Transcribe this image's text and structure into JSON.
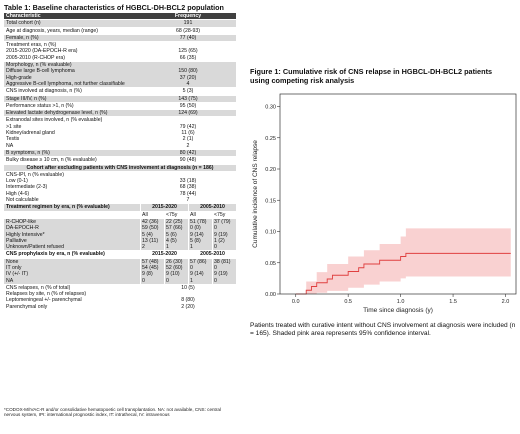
{
  "table": {
    "title": "Table 1: Baseline characteristics of HGBCL-DH-BCL2 population",
    "header": {
      "characteristic": "Characteristic",
      "frequency": "Frequency"
    },
    "rows": [
      {
        "label": "Total cohort (n)",
        "value": "191"
      },
      {
        "label": "Age at diagnosis, years, median (range)",
        "value": "68 (28-93)"
      },
      {
        "label": "Female, n (%)",
        "value": "77 (40)"
      },
      {
        "label": "Treatment eras, n (%)\n2015-2020 (DA-EPOCH-R era)\n2005-2010 (R-CHOP era)",
        "value": "\n125 (65)\n66 (35)"
      },
      {
        "label": "Morphology, n (% evaluable)\nDiffuse large B-cell lymphoma\nHigh-grade\nAggressive B-cell lymphoma, not further classifiable",
        "value": "\n150 (80)\n37 (20)\n4"
      },
      {
        "label": "CNS involved at diagnosis, n (%)",
        "value": "5 (3)"
      },
      {
        "label": "Stage III/IV, n (%)",
        "value": "143 (75)"
      },
      {
        "label": "Performance status >1, n (%)",
        "value": "95 (50)"
      },
      {
        "label": "Elevated lactate dehydrogenase level, n (%)",
        "value": "124 (69)"
      },
      {
        "label": "Extranodal sites involved, n (% evaluable)\n>1 site\nKidney/adrenal gland\nTestis\nNA",
        "value": "\n79 (42)\n11 (6)\n2 (1)\n2"
      },
      {
        "label": "B symptoms, n (%)",
        "value": "80 (42)"
      },
      {
        "label": "Bulky disease ≥ 10 cm, n (% evaluable)",
        "value": "90 (48)"
      }
    ],
    "cohort_section": {
      "title": "Cohort after excluding patients with CNS involvement at diagnosis (n = 186)",
      "label": "CNS-IPI, n (% evaluable)\nLow (0-1)\nIntermediate (2-3)\nHigh (4-6)\nNot calculable",
      "value": "\n33 (18)\n68 (38)\n78 (44)\n7"
    },
    "treatment_section": {
      "title": "Treatment regimen by era, n (% evaluable)",
      "era1": "2015-2020",
      "era2": "2005-2010",
      "subheads": [
        "All",
        "<75y",
        "All",
        "<75y"
      ],
      "label": "R-CHOP-like\nDA-EPOCH-R\nHighly Intensive*\nPalliative\nUnknown/Patient refused",
      "cols": [
        "42 (36)\n59 (50)\n5 (4)\n13 (11)\n2",
        "22 (25)\n57 (66)\n5 (6)\n4 (5)\n1",
        "51 (78)\n0 (0)\n9 (14)\n5 (8)\n1",
        "37 (79)\n0\n9 (19)\n1 (2)\n0"
      ]
    },
    "prophylaxis_section": {
      "title": "CNS prophylaxis by era, n (% evaluable)",
      "era1": "2015-2020",
      "era2": "2005-2010",
      "label": "None\nIT only\nIV (+/- IT)\nNA",
      "cols": [
        "57 (48)\n54 (45)\n9 (8)\n0",
        "26 (30)\n52 (60)\n9 (10)\n0",
        "57 (86)\n0\n9 (14)\n1",
        "38 (81)\n0\n9 (19)\n0"
      ]
    },
    "relapse": {
      "label": "CNS relapses, n (% of total)\nRelapses by site, n (% of relapses)\nLeptomeningeal +/- parenchymal\nParenchymal only",
      "value": "10 (5)\n\n8 (80)\n2 (20)"
    },
    "footnote": "*CODOX-M/IVAC-R and/or consolidative hematopoetic cell transplantation. NA: not available, CNS: central nervous system, IPI: international prognostic index, IT: intrathecal, IV: intravenous"
  },
  "figure": {
    "title": "Figure 1: Cumulative risk of CNS relapse in HGBCL-DH-BCL2 patients using competing risk analysis",
    "caption": "Patients treated with curative intent without CNS involvement at diagnosis were included (n = 165). Shaded pink area represents 95% confidence interval.",
    "line_color": "#e04040",
    "band_color": "#f7c5c5"
  },
  "chart_data": {
    "type": "line",
    "title": "",
    "xlabel": "Time since diagnosis (y)",
    "ylabel": "Cumulative incidence of CNS relapse",
    "xlim": [
      -0.15,
      2.1
    ],
    "ylim": [
      0,
      0.32
    ],
    "xticks": [
      0.0,
      0.5,
      1.0,
      1.5,
      2.0
    ],
    "yticks": [
      0.0,
      0.05,
      0.1,
      0.15,
      0.2,
      0.25,
      0.3
    ],
    "xtick_labels": [
      "0.0",
      "0.5",
      "1.0",
      "1.5",
      "2.0"
    ],
    "ytick_labels": [
      "0.00",
      "0.05",
      "0.10",
      "0.15",
      "0.20",
      "0.25",
      "0.30"
    ],
    "grid": false,
    "series": [
      {
        "estimate": {
          "x": [
            0.0,
            0.1,
            0.15,
            0.2,
            0.3,
            0.35,
            0.5,
            0.6,
            0.65,
            0.8,
            1.0,
            1.05,
            2.05
          ],
          "y": [
            0.0,
            0.006,
            0.012,
            0.018,
            0.024,
            0.03,
            0.036,
            0.042,
            0.048,
            0.054,
            0.06,
            0.065,
            0.065
          ]
        },
        "lower_ci": {
          "x": [
            0.0,
            0.1,
            0.2,
            0.3,
            0.5,
            0.65,
            0.8,
            1.0,
            1.05,
            2.05
          ],
          "y": [
            0.0,
            0.0,
            0.002,
            0.005,
            0.01,
            0.015,
            0.02,
            0.025,
            0.028,
            0.028
          ]
        },
        "upper_ci": {
          "x": [
            0.0,
            0.1,
            0.2,
            0.3,
            0.5,
            0.65,
            0.8,
            1.0,
            1.05,
            2.05
          ],
          "y": [
            0.0,
            0.02,
            0.035,
            0.048,
            0.06,
            0.07,
            0.08,
            0.092,
            0.105,
            0.105
          ]
        }
      }
    ]
  }
}
